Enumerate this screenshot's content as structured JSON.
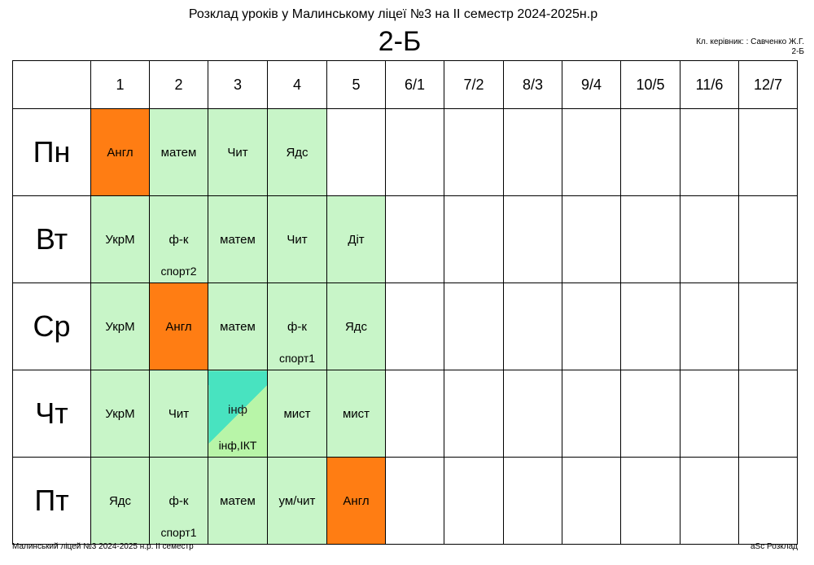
{
  "title": "Розклад уроків у Малинському ліцеї №3 на ІІ семестр 2024-2025н.р",
  "class_name": "2-Б",
  "teacher_line": "Кл. керівник: : Савченко Ж.Г.",
  "teacher_class": "2-Б",
  "periods": [
    "1",
    "2",
    "3",
    "4",
    "5",
    "6/1",
    "7/2",
    "8/3",
    "9/4",
    "10/5",
    "11/6",
    "12/7"
  ],
  "colors": {
    "lesson": "#c8f5c8",
    "english": "#ff7d13",
    "split_top": "#48e3c0",
    "split_bottom": "#b8f5a8"
  },
  "days": [
    {
      "name": "Пн",
      "lessons": [
        {
          "subject": "Англ",
          "color": "orange"
        },
        {
          "subject": "матем"
        },
        {
          "subject": "Чит"
        },
        {
          "subject": "Ядс"
        }
      ]
    },
    {
      "name": "Вт",
      "lessons": [
        {
          "subject": "УкрМ"
        },
        {
          "subject": "ф-к",
          "room": "спорт2"
        },
        {
          "subject": "матем"
        },
        {
          "subject": "Чит"
        },
        {
          "subject": "Діт"
        }
      ]
    },
    {
      "name": "Ср",
      "lessons": [
        {
          "subject": "УкрМ"
        },
        {
          "subject": "Англ",
          "color": "orange"
        },
        {
          "subject": "матем"
        },
        {
          "subject": "ф-к",
          "room": "спорт1"
        },
        {
          "subject": "Ядс"
        }
      ]
    },
    {
      "name": "Чт",
      "lessons": [
        {
          "subject": "УкрМ"
        },
        {
          "subject": "Чит"
        },
        {
          "subject": "інф",
          "room": "інф,ІКТ",
          "color": "split"
        },
        {
          "subject": "мист"
        },
        {
          "subject": "мист"
        }
      ]
    },
    {
      "name": "Пт",
      "lessons": [
        {
          "subject": "Ядс"
        },
        {
          "subject": "ф-к",
          "room": "спорт1"
        },
        {
          "subject": "матем"
        },
        {
          "subject": "ум/чит"
        },
        {
          "subject": "Англ",
          "color": "orange"
        }
      ]
    }
  ],
  "footer_left": "Малинський ліцей №3  2024-2025 н.р. ІІ семестр",
  "footer_right": "aSc Розклад"
}
